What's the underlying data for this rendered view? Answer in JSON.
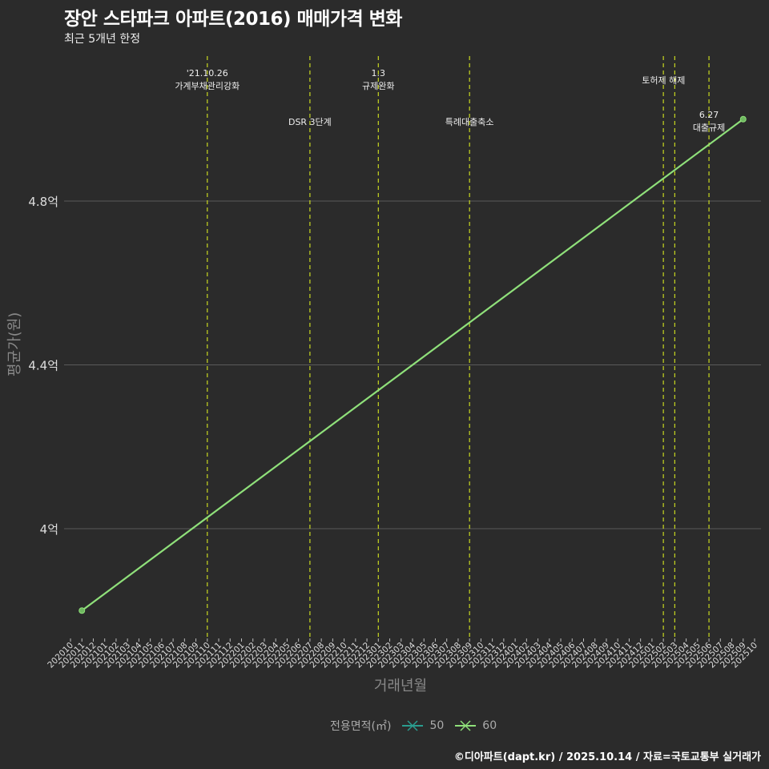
{
  "header": {
    "title": "장안 스타파크 아파트(2016) 매매가격 변화",
    "subtitle": "최근 5개년 한정"
  },
  "axes": {
    "ylabel": "평균가(원)",
    "xlabel": "거래년월"
  },
  "legend": {
    "title": "전용면적(㎡)",
    "items": [
      {
        "label": "50",
        "color": "#2a9d8f"
      },
      {
        "label": "60",
        "color": "#8fe07a"
      }
    ]
  },
  "caption": "©디아파트(dapt.kr) / 2025.10.14 / 자료=국토교통부 실거래가",
  "colors": {
    "background": "#2b2b2b",
    "grid": "#5a5a5a",
    "event_line": "#c8d820",
    "series_60": "#8fe07a"
  },
  "chart_data": {
    "type": "line",
    "title": "장안 스타파크 아파트(2016) 매매가격 변화",
    "subtitle": "최근 5개년 한정",
    "xlabel": "거래년월",
    "ylabel": "평균가(원)",
    "categories": [
      "202010",
      "202011",
      "202012",
      "202101",
      "202102",
      "202103",
      "202104",
      "202105",
      "202106",
      "202107",
      "202108",
      "202109",
      "202110",
      "202111",
      "202112",
      "202201",
      "202202",
      "202203",
      "202204",
      "202205",
      "202206",
      "202207",
      "202208",
      "202209",
      "202210",
      "202211",
      "202212",
      "202301",
      "202302",
      "202303",
      "202304",
      "202305",
      "202306",
      "202307",
      "202308",
      "202309",
      "202310",
      "202311",
      "202312",
      "202401",
      "202402",
      "202403",
      "202404",
      "202405",
      "202406",
      "202407",
      "202408",
      "202409",
      "202410",
      "202411",
      "202412",
      "202501",
      "202502",
      "202503",
      "202504",
      "202505",
      "202506",
      "202507",
      "202508",
      "202509",
      "202510"
    ],
    "yticks": [
      {
        "value": 4.0,
        "label": "4억"
      },
      {
        "value": 4.4,
        "label": "4.4억"
      },
      {
        "value": 4.8,
        "label": "4.8억"
      }
    ],
    "ylim": [
      3.72,
      5.08
    ],
    "grid": "horizontal",
    "legend_position": "bottom",
    "series": [
      {
        "name": "60",
        "color": "#8fe07a",
        "points": [
          {
            "x": "202011",
            "y": 3.8
          },
          {
            "x": "202509",
            "y": 5.0
          }
        ]
      }
    ],
    "events": [
      {
        "x": "202110",
        "label": [
          "'21.10.26",
          "가계부채관리강화"
        ],
        "row": 0
      },
      {
        "x": "202207",
        "label": [
          "DSR 3단계"
        ],
        "row": 1
      },
      {
        "x": "202301",
        "label": [
          "1.3",
          "규제완화"
        ],
        "row": 0
      },
      {
        "x": "202309",
        "label": [
          "특례대출축소"
        ],
        "row": 1
      },
      {
        "x": "202502",
        "label": [],
        "row": 0
      },
      {
        "x": "202503",
        "label": [
          "토허제 해제"
        ],
        "row": 0,
        "offset": -14
      },
      {
        "x": "202506",
        "label": [
          "6.27",
          "대출규제"
        ],
        "row": 1
      }
    ]
  }
}
